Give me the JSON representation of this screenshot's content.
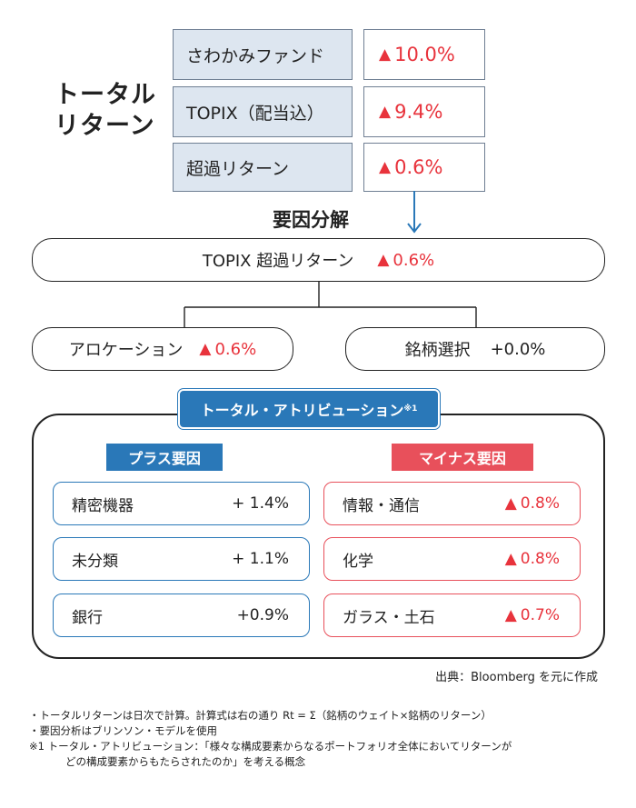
{
  "total_return": {
    "title_line1": "トータル",
    "title_line2": "リターン",
    "rows": [
      {
        "label": "さわかみファンド",
        "value": "10.0%"
      },
      {
        "label": "TOPIX（配当込）",
        "value": "9.4%"
      },
      {
        "label": "超過リターン",
        "value": "0.6%"
      }
    ]
  },
  "decomposition": {
    "heading": "要因分解",
    "excess": {
      "label": "TOPIX 超過リターン",
      "value": "0.6%"
    },
    "allocation": {
      "label": "アロケーション",
      "value": "0.6%"
    },
    "selection": {
      "label": "銘柄選択",
      "value": "+0.0%"
    }
  },
  "attribution": {
    "title": "トータル・アトリビューション",
    "title_note": "※1",
    "plus": {
      "heading": "プラス要因",
      "items": [
        {
          "name": "精密機器",
          "value": "+ 1.4%"
        },
        {
          "name": "未分類",
          "value": "+ 1.1%"
        },
        {
          "name": "銀行",
          "value": "+0.9%"
        }
      ]
    },
    "minus": {
      "heading": "マイナス要因",
      "items": [
        {
          "name": "情報・通信",
          "value": "0.8%"
        },
        {
          "name": "化学",
          "value": "0.8%"
        },
        {
          "name": "ガラス・土石",
          "value": "0.7%"
        }
      ]
    }
  },
  "source": "出典：Bloomberg を元に作成",
  "notes": [
    "・トータルリターンは日次で計算。計算式は右の通り Rt = Σ（銘柄のウェイト×銘柄のリターン）",
    "・要因分析はブリンソン・モデルを使用",
    "※1  トータル・アトリビューション：「様々な構成要素からなるポートフォリオ全体においてリターンが",
    "どの構成要素からもたらされたのか」を考える概念"
  ],
  "colors": {
    "accent_blue": "#2a78b8",
    "accent_red": "#e8505b",
    "negative_red": "#e8333c",
    "cell_bg": "#dde6f0"
  },
  "icons": {
    "down_arrow": "arrow-down-icon",
    "negative": "triangle-up-icon"
  }
}
